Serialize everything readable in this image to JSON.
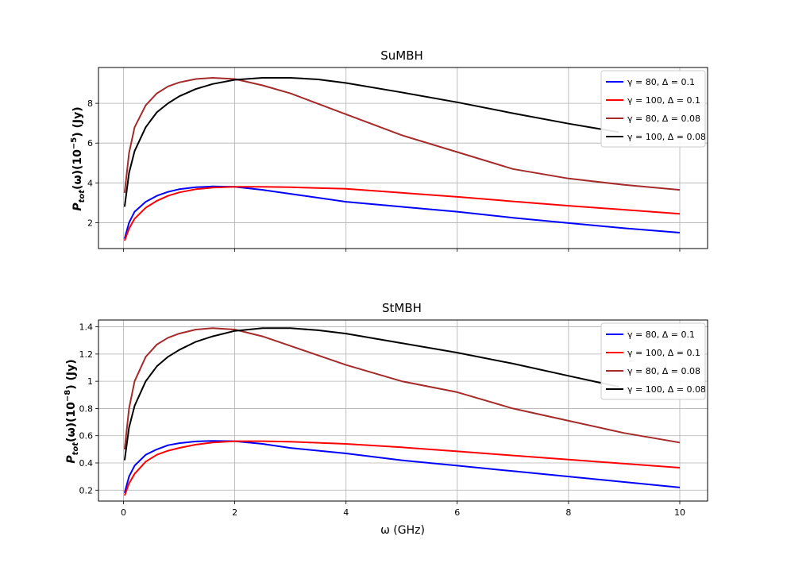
{
  "chart_data": [
    {
      "type": "line",
      "title": "SuMBH",
      "xlabel": "",
      "ylabel": "P_tot(ω)(10⁻⁵) (Jy)",
      "ylabel_main": "P",
      "ylabel_sub": "tot",
      "ylabel_rest": "(ω)(10",
      "ylabel_exp": "−5",
      "ylabel_tail": ") (Jy)",
      "xlim": [
        -0.45,
        10.5
      ],
      "ylim": [
        0.7,
        9.8
      ],
      "xticks": [
        0,
        2,
        4,
        6,
        8,
        10
      ],
      "yticks": [
        2,
        4,
        6,
        8
      ],
      "grid": true,
      "legend_position": "top-right",
      "series": [
        {
          "name": "γ = 80, Δ = 0.1",
          "color": "#0000ff",
          "x": [
            0.02,
            0.1,
            0.2,
            0.4,
            0.6,
            0.8,
            1.0,
            1.3,
            1.6,
            2.0,
            2.5,
            3.0,
            4.0,
            5.0,
            6.0,
            7.0,
            8.0,
            9.0,
            10.0
          ],
          "y": [
            1.2,
            2.0,
            2.55,
            3.05,
            3.35,
            3.55,
            3.68,
            3.78,
            3.82,
            3.8,
            3.65,
            3.45,
            3.05,
            2.8,
            2.55,
            2.25,
            1.98,
            1.72,
            1.5
          ]
        },
        {
          "name": "γ = 100, Δ = 0.1",
          "color": "#ff0000",
          "x": [
            0.02,
            0.1,
            0.2,
            0.4,
            0.6,
            0.8,
            1.0,
            1.3,
            1.6,
            2.0,
            2.5,
            3.0,
            4.0,
            5.0,
            6.0,
            7.0,
            8.0,
            9.0,
            10.0
          ],
          "y": [
            1.1,
            1.7,
            2.2,
            2.75,
            3.1,
            3.35,
            3.52,
            3.68,
            3.76,
            3.8,
            3.8,
            3.78,
            3.7,
            3.5,
            3.3,
            3.07,
            2.85,
            2.65,
            2.45
          ]
        },
        {
          "name": "γ = 80, Δ = 0.08",
          "color": "#a52a2a",
          "x": [
            0.02,
            0.1,
            0.2,
            0.4,
            0.6,
            0.8,
            1.0,
            1.3,
            1.6,
            2.0,
            2.5,
            3.0,
            4.0,
            5.0,
            6.0,
            7.0,
            8.0,
            9.0,
            10.0
          ],
          "y": [
            3.5,
            5.5,
            6.8,
            7.9,
            8.5,
            8.85,
            9.05,
            9.22,
            9.28,
            9.22,
            8.9,
            8.5,
            7.45,
            6.4,
            5.55,
            4.7,
            4.22,
            3.9,
            3.65
          ]
        },
        {
          "name": "γ = 100, Δ = 0.08",
          "color": "#000000",
          "x": [
            0.02,
            0.1,
            0.2,
            0.4,
            0.6,
            0.8,
            1.0,
            1.3,
            1.6,
            2.0,
            2.5,
            3.0,
            3.5,
            4.0,
            5.0,
            6.0,
            7.0,
            8.0,
            8.9
          ],
          "y": [
            2.8,
            4.5,
            5.6,
            6.8,
            7.55,
            8.0,
            8.35,
            8.72,
            8.97,
            9.18,
            9.28,
            9.28,
            9.2,
            9.02,
            8.55,
            8.05,
            7.5,
            6.98,
            6.55
          ]
        }
      ]
    },
    {
      "type": "line",
      "title": "StMBH",
      "xlabel": "ω (GHz)",
      "ylabel": "P_tot(ω)(10⁻⁸) (Jy)",
      "ylabel_main": "P",
      "ylabel_sub": "tot",
      "ylabel_rest": "(ω)(10",
      "ylabel_exp": "−8",
      "ylabel_tail": ") (Jy)",
      "xlim": [
        -0.45,
        10.5
      ],
      "ylim": [
        0.12,
        1.45
      ],
      "xticks": [
        0,
        2,
        4,
        6,
        8,
        10
      ],
      "yticks": [
        0.2,
        0.4,
        0.6,
        0.8,
        1.0,
        1.2,
        1.4
      ],
      "grid": true,
      "legend_position": "top-right",
      "series": [
        {
          "name": "γ = 80, Δ = 0.1",
          "color": "#0000ff",
          "x": [
            0.02,
            0.1,
            0.2,
            0.4,
            0.6,
            0.8,
            1.0,
            1.3,
            1.6,
            2.0,
            2.5,
            3.0,
            4.0,
            5.0,
            6.0,
            7.0,
            8.0,
            9.0,
            10.0
          ],
          "y": [
            0.18,
            0.3,
            0.38,
            0.46,
            0.5,
            0.53,
            0.545,
            0.558,
            0.562,
            0.56,
            0.54,
            0.51,
            0.47,
            0.42,
            0.38,
            0.34,
            0.3,
            0.26,
            0.22
          ]
        },
        {
          "name": "γ = 100, Δ = 0.1",
          "color": "#ff0000",
          "x": [
            0.02,
            0.1,
            0.2,
            0.4,
            0.6,
            0.8,
            1.0,
            1.3,
            1.6,
            2.0,
            2.5,
            3.0,
            4.0,
            5.0,
            6.0,
            7.0,
            8.0,
            9.0,
            10.0
          ],
          "y": [
            0.16,
            0.25,
            0.32,
            0.41,
            0.46,
            0.49,
            0.51,
            0.535,
            0.55,
            0.56,
            0.56,
            0.556,
            0.54,
            0.515,
            0.485,
            0.455,
            0.425,
            0.395,
            0.365
          ]
        },
        {
          "name": "γ = 80, Δ = 0.08",
          "color": "#a52a2a",
          "x": [
            0.02,
            0.1,
            0.2,
            0.4,
            0.6,
            0.8,
            1.0,
            1.3,
            1.6,
            2.0,
            2.5,
            3.0,
            4.0,
            5.0,
            6.0,
            7.0,
            8.0,
            9.0,
            10.0
          ],
          "y": [
            0.5,
            0.8,
            1.0,
            1.18,
            1.27,
            1.32,
            1.35,
            1.38,
            1.39,
            1.38,
            1.33,
            1.26,
            1.12,
            1.0,
            0.92,
            0.8,
            0.71,
            0.62,
            0.55
          ]
        },
        {
          "name": "γ = 100, Δ = 0.08",
          "color": "#000000",
          "x": [
            0.02,
            0.1,
            0.2,
            0.4,
            0.6,
            0.8,
            1.0,
            1.3,
            1.6,
            2.0,
            2.5,
            3.0,
            3.5,
            4.0,
            5.0,
            6.0,
            7.0,
            8.0,
            8.9
          ],
          "y": [
            0.42,
            0.66,
            0.82,
            1.0,
            1.11,
            1.18,
            1.23,
            1.29,
            1.33,
            1.37,
            1.39,
            1.39,
            1.375,
            1.35,
            1.28,
            1.21,
            1.13,
            1.04,
            0.96
          ]
        }
      ]
    }
  ]
}
